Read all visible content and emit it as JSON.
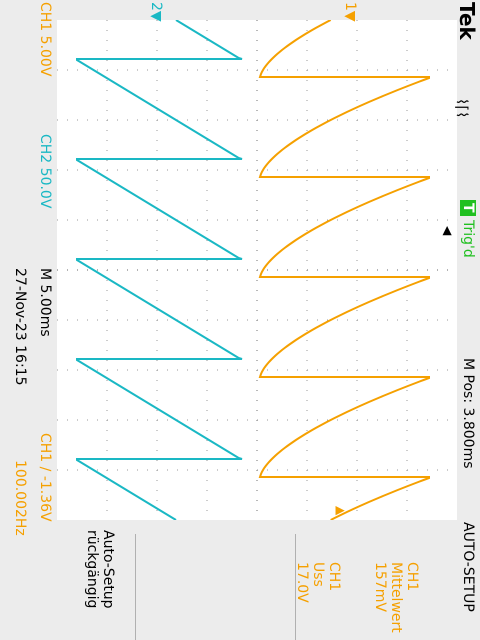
{
  "header": {
    "brand": "Tek",
    "trigger_status": "Trig'd",
    "trigger_badge": "T",
    "m_pos": "M Pos: 3.800ms"
  },
  "readouts": {
    "ch1_scale": "CH1  5.00V",
    "ch2_scale": "CH2  50.0V",
    "timebase": "M 5.00ms",
    "datetime": "27-Nov-23 16:15",
    "trigger_readout": "CH1 ∕ -1.36V",
    "frequency": "100.002Hz",
    "ch1_marker": "1",
    "ch2_marker": "2"
  },
  "menu": {
    "title": "AUTO-SETUP",
    "measurement": {
      "line1": "CH1",
      "line2": "Mittelwert",
      "line3": "157mV"
    },
    "peak_to_peak": {
      "line1": "CH1",
      "line2": "Uss",
      "line3": "17.0V"
    },
    "undo": {
      "line1": "Auto-Setup",
      "line2": "rückgängig"
    }
  },
  "colors": {
    "ch1": "#f5a000",
    "ch2": "#1ab8c4",
    "grid": "#9a9a9a",
    "trigger": "#20c020"
  }
}
